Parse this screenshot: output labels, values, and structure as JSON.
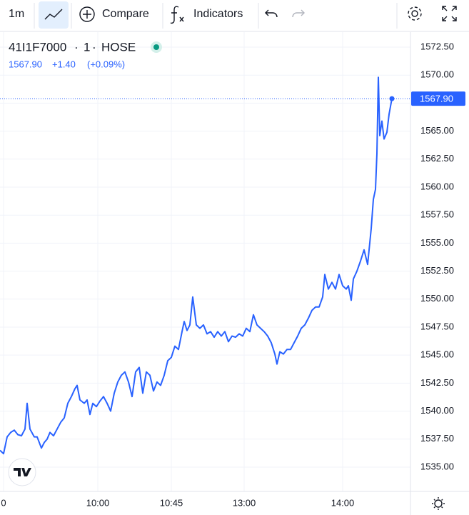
{
  "toolbar": {
    "interval": "1m",
    "compare": "Compare",
    "indicators": "Indicators"
  },
  "chart_data": {
    "type": "line",
    "symbol": "41I1F7000",
    "interval": "1",
    "exchange": "HOSE",
    "change": "+1.40",
    "change_pct": "(+0.09%)",
    "last_value": {
      "value": 1567.9,
      "label": "1567.90"
    },
    "xlim": [
      0,
      575
    ],
    "xticks": [
      {
        "value": 5,
        "label": "0"
      },
      {
        "value": 137,
        "label": "10:00"
      },
      {
        "value": 240,
        "label": "10:45"
      },
      {
        "value": 342,
        "label": "13:00"
      },
      {
        "value": 480,
        "label": "14:00"
      }
    ],
    "ylim": [
      1532.83,
      1573.84
    ],
    "yticks": [
      {
        "value": 1535,
        "label": "1535.00"
      },
      {
        "value": 1537.5,
        "label": "1537.50"
      },
      {
        "value": 1540,
        "label": "1540.00"
      },
      {
        "value": 1542.5,
        "label": "1542.50"
      },
      {
        "value": 1545,
        "label": "1545.00"
      },
      {
        "value": 1547.5,
        "label": "1547.50"
      },
      {
        "value": 1550,
        "label": "1550.00"
      },
      {
        "value": 1552.5,
        "label": "1552.50"
      },
      {
        "value": 1555,
        "label": "1555.00"
      },
      {
        "value": 1557.5,
        "label": "1557.50"
      },
      {
        "value": 1560,
        "label": "1560.00"
      },
      {
        "value": 1562.5,
        "label": "1562.50"
      },
      {
        "value": 1565,
        "label": "1565.00"
      },
      {
        "value": 1567.5,
        "label": "1567.50"
      },
      {
        "value": 1570,
        "label": "1570.00"
      },
      {
        "value": 1572.5,
        "label": "1572.50"
      }
    ],
    "grid": true,
    "series": [
      {
        "color": "#2962ff",
        "x": [
          0,
          5,
          10,
          15,
          20,
          25,
          30,
          35,
          38,
          42,
          48,
          52,
          58,
          62,
          66,
          70,
          75,
          80,
          85,
          90,
          95,
          100,
          105,
          108,
          112,
          118,
          122,
          126,
          130,
          135,
          140,
          145,
          150,
          155,
          160,
          165,
          170,
          175,
          180,
          185,
          190,
          195,
          200,
          205,
          210,
          215,
          220,
          225,
          230,
          235,
          240,
          245,
          250,
          255,
          258,
          262,
          266,
          270,
          275,
          280,
          285,
          290,
          295,
          300,
          305,
          310,
          315,
          320,
          325,
          330,
          335,
          340,
          345,
          350,
          355,
          360,
          365,
          370,
          375,
          380,
          385,
          388,
          392,
          397,
          402,
          407,
          412,
          417,
          422,
          427,
          432,
          437,
          442,
          447,
          452,
          455,
          460,
          465,
          470,
          475,
          480,
          485,
          488,
          492,
          495,
          500,
          505,
          510,
          515,
          520,
          523,
          526,
          528,
          530,
          532,
          535,
          538,
          542,
          545,
          549
        ],
        "values": [
          1536.5,
          1536.2,
          1537.7,
          1538.1,
          1538.3,
          1537.9,
          1537.8,
          1538.4,
          1540.7,
          1538.4,
          1537.7,
          1537.7,
          1536.7,
          1537.2,
          1537.5,
          1538.1,
          1537.8,
          1538.4,
          1539.0,
          1539.4,
          1540.7,
          1541.3,
          1542.0,
          1542.3,
          1541.0,
          1540.7,
          1541.0,
          1539.7,
          1540.7,
          1540.4,
          1540.9,
          1541.3,
          1540.7,
          1540.0,
          1541.6,
          1542.6,
          1543.2,
          1543.5,
          1542.6,
          1541.3,
          1543.5,
          1543.9,
          1541.6,
          1543.5,
          1543.2,
          1541.8,
          1542.6,
          1542.3,
          1543.2,
          1544.5,
          1544.8,
          1545.8,
          1545.5,
          1547.1,
          1548.0,
          1547.2,
          1547.7,
          1550.2,
          1547.7,
          1547.4,
          1547.7,
          1546.9,
          1547.1,
          1546.6,
          1547.1,
          1546.7,
          1547.1,
          1546.2,
          1546.7,
          1546.6,
          1546.9,
          1546.7,
          1547.4,
          1547.1,
          1548.6,
          1547.7,
          1547.4,
          1547.1,
          1546.7,
          1546.1,
          1545.1,
          1544.2,
          1545.3,
          1545.1,
          1545.5,
          1545.5,
          1546.1,
          1546.7,
          1547.4,
          1547.7,
          1548.3,
          1549.0,
          1549.3,
          1549.3,
          1550.2,
          1552.2,
          1550.9,
          1551.5,
          1550.9,
          1552.2,
          1551.2,
          1550.9,
          1551.2,
          1549.9,
          1551.8,
          1552.5,
          1553.4,
          1554.4,
          1553.1,
          1556.3,
          1558.9,
          1559.8,
          1563.0,
          1569.8,
          1564.6,
          1565.9,
          1564.3,
          1564.9,
          1566.5,
          1567.9
        ]
      }
    ]
  }
}
